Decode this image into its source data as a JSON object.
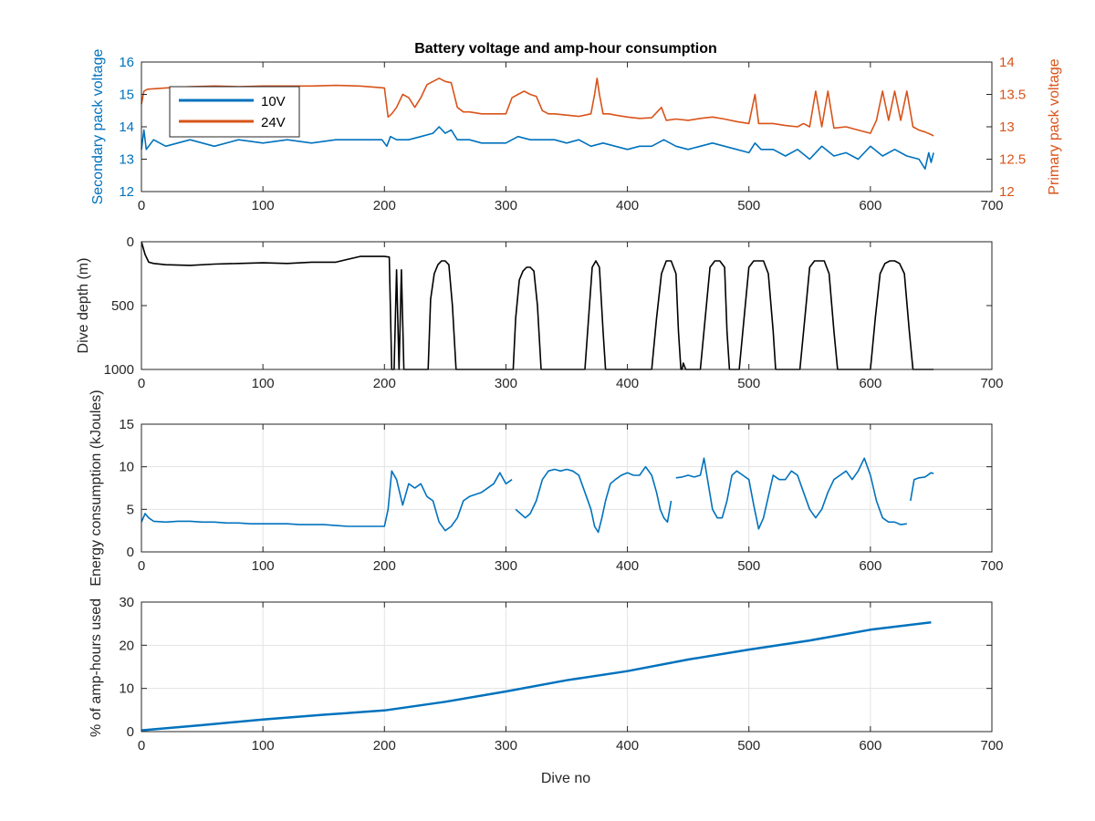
{
  "colors": {
    "blue": "#0072BD",
    "orange": "#D95319",
    "black": "#000000",
    "axis": "#262626",
    "grid": "#e3e3e3"
  },
  "chart_data": [
    {
      "type": "line",
      "title": "Battery voltage and amp-hour consumption",
      "xlabel": "",
      "ylabel_left": "Secondary pack voltage",
      "ylabel_right": "Primary pack voltage",
      "xlim": [
        0,
        700
      ],
      "ylim_left": [
        12,
        16
      ],
      "ylim_right": [
        12,
        14
      ],
      "xticks": [
        "0",
        "100",
        "200",
        "300",
        "400",
        "500",
        "600",
        "700"
      ],
      "yticks_left": [
        "12",
        "13",
        "14",
        "15",
        "16"
      ],
      "yticks_right": [
        "12",
        "12.5",
        "13",
        "13.5",
        "14"
      ],
      "grid": false,
      "legend": "top-left",
      "series": [
        {
          "name": "10V",
          "axis": "left",
          "color": "#0072BD",
          "x": [
            0,
            2,
            4,
            10,
            20,
            40,
            60,
            80,
            100,
            120,
            140,
            160,
            180,
            198,
            202,
            205,
            210,
            220,
            230,
            240,
            245,
            250,
            255,
            260,
            270,
            280,
            290,
            300,
            305,
            310,
            320,
            330,
            340,
            350,
            360,
            370,
            380,
            390,
            400,
            410,
            420,
            430,
            440,
            450,
            460,
            470,
            480,
            490,
            500,
            505,
            510,
            520,
            530,
            540,
            550,
            560,
            570,
            580,
            590,
            600,
            610,
            620,
            630,
            640,
            645,
            648,
            650,
            652
          ],
          "y": [
            13.3,
            13.9,
            13.3,
            13.6,
            13.4,
            13.6,
            13.4,
            13.6,
            13.5,
            13.6,
            13.5,
            13.6,
            13.6,
            13.6,
            13.4,
            13.7,
            13.6,
            13.6,
            13.7,
            13.8,
            14.0,
            13.8,
            13.9,
            13.6,
            13.6,
            13.5,
            13.5,
            13.5,
            13.6,
            13.7,
            13.6,
            13.6,
            13.6,
            13.5,
            13.6,
            13.4,
            13.5,
            13.4,
            13.3,
            13.4,
            13.4,
            13.6,
            13.4,
            13.3,
            13.4,
            13.5,
            13.4,
            13.3,
            13.2,
            13.5,
            13.3,
            13.3,
            13.1,
            13.3,
            13.0,
            13.4,
            13.1,
            13.2,
            13.0,
            13.4,
            13.1,
            13.3,
            13.1,
            13.0,
            12.7,
            13.2,
            12.9,
            13.2
          ]
        },
        {
          "name": "24V",
          "axis": "right",
          "color": "#D95319",
          "x": [
            0,
            2,
            5,
            20,
            40,
            60,
            80,
            100,
            120,
            140,
            160,
            180,
            200,
            203,
            206,
            210,
            215,
            220,
            225,
            230,
            235,
            240,
            245,
            250,
            255,
            260,
            265,
            270,
            280,
            290,
            300,
            305,
            310,
            315,
            320,
            325,
            330,
            335,
            340,
            350,
            360,
            370,
            373,
            375,
            377,
            380,
            385,
            390,
            400,
            410,
            420,
            428,
            430,
            432,
            440,
            450,
            460,
            470,
            480,
            490,
            500,
            505,
            508,
            510,
            520,
            530,
            540,
            545,
            550,
            555,
            560,
            565,
            570,
            580,
            590,
            600,
            605,
            610,
            615,
            620,
            625,
            630,
            635,
            640,
            645,
            650,
            652
          ],
          "y": [
            13.35,
            13.55,
            13.58,
            13.6,
            13.62,
            13.63,
            13.62,
            13.63,
            13.63,
            13.63,
            13.64,
            13.63,
            13.6,
            13.15,
            13.2,
            13.3,
            13.5,
            13.45,
            13.3,
            13.45,
            13.65,
            13.7,
            13.75,
            13.7,
            13.68,
            13.3,
            13.23,
            13.23,
            13.2,
            13.2,
            13.2,
            13.45,
            13.5,
            13.55,
            13.5,
            13.47,
            13.25,
            13.2,
            13.2,
            13.18,
            13.16,
            13.2,
            13.5,
            13.75,
            13.5,
            13.2,
            13.2,
            13.18,
            13.15,
            13.13,
            13.14,
            13.3,
            13.2,
            13.1,
            13.12,
            13.1,
            13.13,
            13.15,
            13.12,
            13.08,
            13.05,
            13.5,
            13.05,
            13.05,
            13.05,
            13.02,
            13.0,
            13.05,
            13.0,
            13.55,
            13.0,
            13.55,
            12.98,
            13.0,
            12.95,
            12.9,
            13.1,
            13.55,
            13.1,
            13.55,
            13.1,
            13.55,
            13.0,
            12.95,
            12.92,
            12.88,
            12.86
          ]
        }
      ]
    },
    {
      "type": "line",
      "title": "",
      "xlabel": "",
      "ylabel": "Dive depth (m)",
      "xlim": [
        0,
        700
      ],
      "ylim": [
        0,
        1000
      ],
      "y_reversed": true,
      "xticks": [
        "0",
        "100",
        "200",
        "300",
        "400",
        "500",
        "600",
        "700"
      ],
      "yticks": [
        "0",
        "500",
        "1000"
      ],
      "grid": false,
      "series": [
        {
          "color": "#000000",
          "x": [
            0,
            3,
            6,
            10,
            20,
            40,
            60,
            80,
            100,
            120,
            140,
            160,
            180,
            200,
            204,
            206,
            208,
            210,
            212,
            214,
            216,
            218,
            236,
            238,
            241,
            244,
            247,
            250,
            253,
            256,
            259,
            262,
            306,
            308,
            311,
            314,
            317,
            320,
            323,
            326,
            329,
            332,
            365,
            368,
            371,
            374,
            377,
            380,
            382,
            384,
            420,
            424,
            428,
            432,
            436,
            440,
            442,
            444,
            445,
            446,
            448,
            450,
            460,
            464,
            468,
            472,
            476,
            480,
            482,
            484,
            492,
            496,
            500,
            504,
            508,
            512,
            516,
            520,
            522,
            524,
            542,
            546,
            550,
            554,
            558,
            562,
            566,
            570,
            573,
            576,
            600,
            604,
            608,
            612,
            616,
            620,
            624,
            628,
            632,
            635,
            652
          ],
          "y": [
            0,
            100,
            160,
            170,
            180,
            185,
            175,
            170,
            165,
            170,
            160,
            160,
            115,
            115,
            120,
            1000,
            1000,
            220,
            1000,
            220,
            1000,
            1000,
            1000,
            450,
            250,
            180,
            150,
            150,
            180,
            500,
            1000,
            1000,
            1000,
            600,
            300,
            230,
            200,
            200,
            230,
            500,
            1000,
            1000,
            1000,
            600,
            200,
            150,
            200,
            700,
            1000,
            1000,
            1000,
            600,
            250,
            150,
            150,
            250,
            700,
            1000,
            1000,
            950,
            1000,
            1000,
            1000,
            600,
            200,
            150,
            150,
            200,
            700,
            1000,
            1000,
            600,
            200,
            150,
            150,
            150,
            250,
            700,
            1000,
            1000,
            1000,
            600,
            200,
            150,
            150,
            150,
            250,
            700,
            1000,
            1000,
            1000,
            600,
            250,
            170,
            150,
            150,
            170,
            250,
            700,
            1000,
            1000
          ]
        }
      ]
    },
    {
      "type": "line",
      "title": "",
      "xlabel": "",
      "ylabel": "Energy consumption (kJoules)",
      "xlim": [
        0,
        700
      ],
      "ylim": [
        0,
        15
      ],
      "xticks": [
        "0",
        "100",
        "200",
        "300",
        "400",
        "500",
        "600",
        "700"
      ],
      "yticks": [
        "0",
        "5",
        "10",
        "15"
      ],
      "grid": true,
      "series": [
        {
          "color": "#0072BD",
          "segments": [
            {
              "x": [
                0,
                3,
                6,
                10,
                20,
                30,
                40,
                50,
                60,
                70,
                80,
                90,
                100,
                110,
                120,
                130,
                140,
                150,
                160,
                170,
                180,
                190,
                200,
                203,
                206,
                210,
                215,
                220,
                225,
                230,
                235,
                240,
                245,
                250,
                255,
                260,
                265,
                270,
                280,
                290,
                295,
                300,
                305
              ],
              "y": [
                3.5,
                4.5,
                4.0,
                3.6,
                3.5,
                3.6,
                3.6,
                3.5,
                3.5,
                3.4,
                3.4,
                3.3,
                3.3,
                3.3,
                3.3,
                3.2,
                3.2,
                3.2,
                3.1,
                3.0,
                3.0,
                3.0,
                3.0,
                5.0,
                9.5,
                8.5,
                5.5,
                8.0,
                7.5,
                8.0,
                6.5,
                6.0,
                3.5,
                2.5,
                3.0,
                4.0,
                6.0,
                6.5,
                7.0,
                8.0,
                9.3,
                8.0,
                8.5
              ]
            },
            {
              "x": [
                308,
                312,
                316,
                320,
                325,
                330,
                335,
                340,
                345,
                350,
                355,
                360,
                365,
                370,
                373,
                376,
                379,
                382,
                386,
                390,
                395,
                400,
                405,
                410,
                415,
                420,
                424,
                427,
                430,
                433,
                436
              ],
              "y": [
                5.0,
                4.5,
                4.0,
                4.5,
                6.0,
                8.5,
                9.5,
                9.7,
                9.5,
                9.7,
                9.5,
                9.0,
                7.0,
                5.0,
                3.0,
                2.3,
                4.0,
                6.0,
                8.0,
                8.5,
                9.0,
                9.3,
                9.0,
                9.0,
                10.0,
                9.0,
                7.0,
                5.0,
                4.0,
                3.5,
                6.0
              ]
            },
            {
              "x": [
                440,
                445,
                450,
                455,
                460,
                463,
                466,
                470,
                474,
                478,
                482,
                486,
                490,
                495,
                500,
                504,
                508,
                512,
                516,
                520,
                525,
                530,
                535,
                540,
                545,
                550,
                555,
                560,
                565,
                570,
                575,
                580,
                585,
                590,
                595,
                600,
                605,
                610,
                615,
                620,
                625,
                630
              ],
              "y": [
                8.7,
                8.8,
                9.0,
                8.8,
                9.0,
                11.0,
                8.5,
                5.0,
                4.0,
                4.0,
                6.0,
                9.0,
                9.5,
                9.0,
                8.5,
                5.5,
                2.7,
                4.0,
                6.5,
                9.0,
                8.5,
                8.5,
                9.5,
                9.0,
                7.0,
                5.0,
                4.0,
                5.0,
                7.0,
                8.5,
                9.0,
                9.5,
                8.5,
                9.5,
                11.0,
                9.0,
                6.0,
                4.0,
                3.5,
                3.5,
                3.2,
                3.3
              ]
            },
            {
              "x": [
                633,
                636,
                640,
                645,
                650,
                652
              ],
              "y": [
                6.0,
                8.5,
                8.7,
                8.8,
                9.3,
                9.2
              ]
            }
          ]
        }
      ]
    },
    {
      "type": "line",
      "title": "",
      "xlabel": "Dive no",
      "ylabel": "% of amp-hours used",
      "xlim": [
        0,
        700
      ],
      "ylim": [
        0,
        30
      ],
      "xticks": [
        "0",
        "100",
        "200",
        "300",
        "400",
        "500",
        "600",
        "700"
      ],
      "yticks": [
        "0",
        "10",
        "20",
        "30"
      ],
      "grid": true,
      "series": [
        {
          "color": "#0072BD",
          "x": [
            0,
            50,
            100,
            150,
            200,
            250,
            300,
            350,
            400,
            450,
            500,
            550,
            600,
            650
          ],
          "y": [
            0.3,
            1.5,
            2.8,
            3.9,
            4.9,
            6.9,
            9.3,
            11.9,
            14.0,
            16.7,
            19.0,
            21.1,
            23.6,
            25.3
          ]
        }
      ]
    }
  ]
}
